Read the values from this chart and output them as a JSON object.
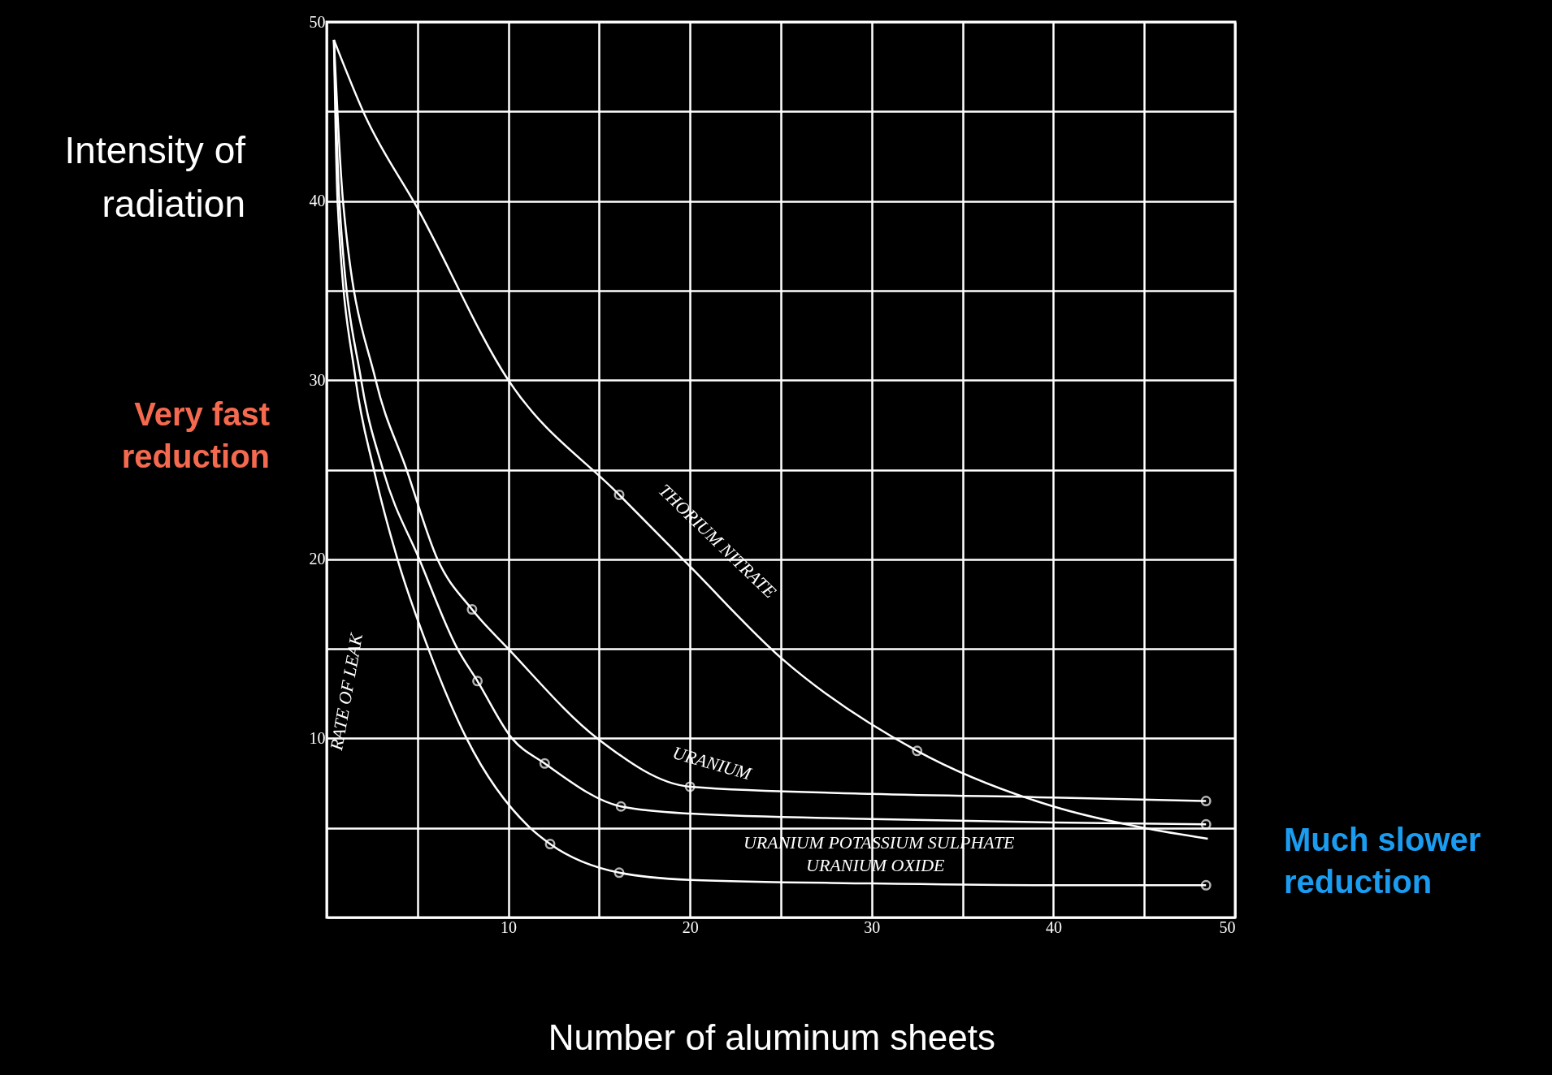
{
  "chart_data": {
    "type": "line",
    "xlabel": "Number of aluminum sheets",
    "ylabel": "Intensity of radiation",
    "xlim": [
      0,
      50
    ],
    "ylim": [
      0,
      50
    ],
    "xticks": [
      {
        "value": 0,
        "label": null
      },
      {
        "value": 5,
        "label": null
      },
      10,
      {
        "value": 15,
        "label": null
      },
      20,
      {
        "value": 25,
        "label": null
      },
      30,
      {
        "value": 35,
        "label": null
      },
      40,
      {
        "value": 45,
        "label": null
      },
      50
    ],
    "yticks": [
      {
        "value": 0,
        "label": null
      },
      {
        "value": 5,
        "label": null
      },
      10,
      {
        "value": 15,
        "label": null
      },
      20,
      {
        "value": 25,
        "label": null
      },
      30,
      {
        "value": 35,
        "label": null
      },
      40,
      {
        "value": 45,
        "label": null
      },
      50
    ],
    "grid": true,
    "marker": "none",
    "line_style": "solid",
    "series": [
      {
        "name": "THORIUM NITRATE",
        "color": "#ffffff",
        "x": [
          0.4,
          2.1,
          5,
          10,
          16.1,
          20,
          25,
          32.5,
          40,
          45,
          48.5
        ],
        "values": [
          49,
          44.8,
          39.6,
          30,
          23.6,
          19.6,
          14.5,
          9.3,
          6.2,
          5,
          4.4
        ]
      },
      {
        "name": "URANIUM",
        "color": "#ffffff",
        "x": [
          0.4,
          0.9,
          2.7,
          4.4,
          6.1,
          8.0,
          10.0,
          14.9,
          20,
          30,
          40,
          48.4
        ],
        "values": [
          49,
          40,
          30,
          25,
          20,
          17.2,
          15,
          10,
          7.3,
          6.9,
          6.7,
          6.5
        ]
      },
      {
        "name": "URANIUM POTASSIUM SULPHATE",
        "color": "#ffffff",
        "x": [
          0.4,
          0.7,
          1.9,
          3.1,
          5.1,
          7.2,
          8.3,
          10.2,
          12.0,
          16.2,
          20,
          30,
          40,
          48.4
        ],
        "values": [
          49,
          40,
          30,
          25,
          20,
          15,
          13.2,
          10,
          8.6,
          6.2,
          5.8,
          5.5,
          5.3,
          5.2
        ]
      },
      {
        "name": "URANIUM OXIDE",
        "color": "#ffffff",
        "x": [
          0.4,
          0.6,
          1.6,
          2.6,
          3.9,
          5.6,
          7.7,
          11.2,
          12.3,
          16.1,
          20,
          30,
          40,
          48.4
        ],
        "values": [
          49,
          40,
          30,
          25,
          20,
          15,
          10,
          5,
          4.1,
          2.5,
          2.1,
          1.9,
          1.8,
          1.8
        ]
      },
      {
        "type": "scatter",
        "marker": "circle",
        "color": "#ffffff",
        "x": [
          16.1,
          32.5,
          8.0,
          20,
          48.4,
          8.3,
          12.0,
          16.2,
          48.4,
          12.3,
          16.1,
          48.4
        ],
        "values": [
          23.6,
          9.3,
          17.2,
          7.3,
          6.5,
          13.2,
          8.6,
          6.2,
          5.2,
          4.1,
          2.5,
          1.8
        ]
      }
    ],
    "annotations": [
      "RATE OF LEAK",
      "Very fast reduction",
      "Much slower reduction"
    ]
  }
}
